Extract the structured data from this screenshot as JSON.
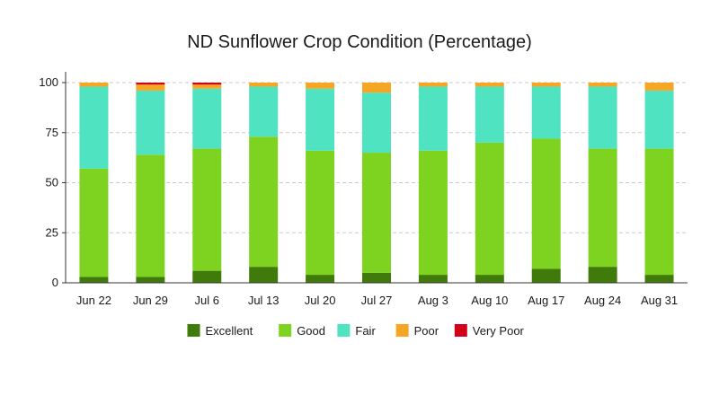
{
  "chart_data": {
    "type": "bar",
    "stacked": true,
    "title": "ND Sunflower Crop Condition (Percentage)",
    "xlabel": "",
    "ylabel": "",
    "ylim": [
      0,
      100
    ],
    "yticks": [
      0,
      25,
      50,
      75,
      100
    ],
    "grid": true,
    "legend_position": "bottom",
    "categories": [
      "Jun 22",
      "Jun 29",
      "Jul 6",
      "Jul 13",
      "Jul 20",
      "Jul 27",
      "Aug 3",
      "Aug 10",
      "Aug 17",
      "Aug 24",
      "Aug 31"
    ],
    "series": [
      {
        "name": "Excellent",
        "color": "#3f7a0b",
        "values": [
          3,
          3,
          6,
          8,
          4,
          5,
          4,
          4,
          7,
          8,
          4
        ]
      },
      {
        "name": "Good",
        "color": "#7ed321",
        "values": [
          54,
          61,
          61,
          65,
          62,
          60,
          62,
          66,
          65,
          59,
          63
        ]
      },
      {
        "name": "Fair",
        "color": "#50e3c2",
        "values": [
          41,
          32,
          30,
          25,
          31,
          30,
          32,
          28,
          26,
          31,
          29
        ]
      },
      {
        "name": "Poor",
        "color": "#f5a623",
        "values": [
          2,
          3,
          2,
          2,
          3,
          5,
          2,
          2,
          2,
          2,
          4
        ]
      },
      {
        "name": "Very Poor",
        "color": "#d0021b",
        "values": [
          0,
          1,
          1,
          0,
          0,
          0,
          0,
          0,
          0,
          0,
          0
        ]
      }
    ]
  }
}
